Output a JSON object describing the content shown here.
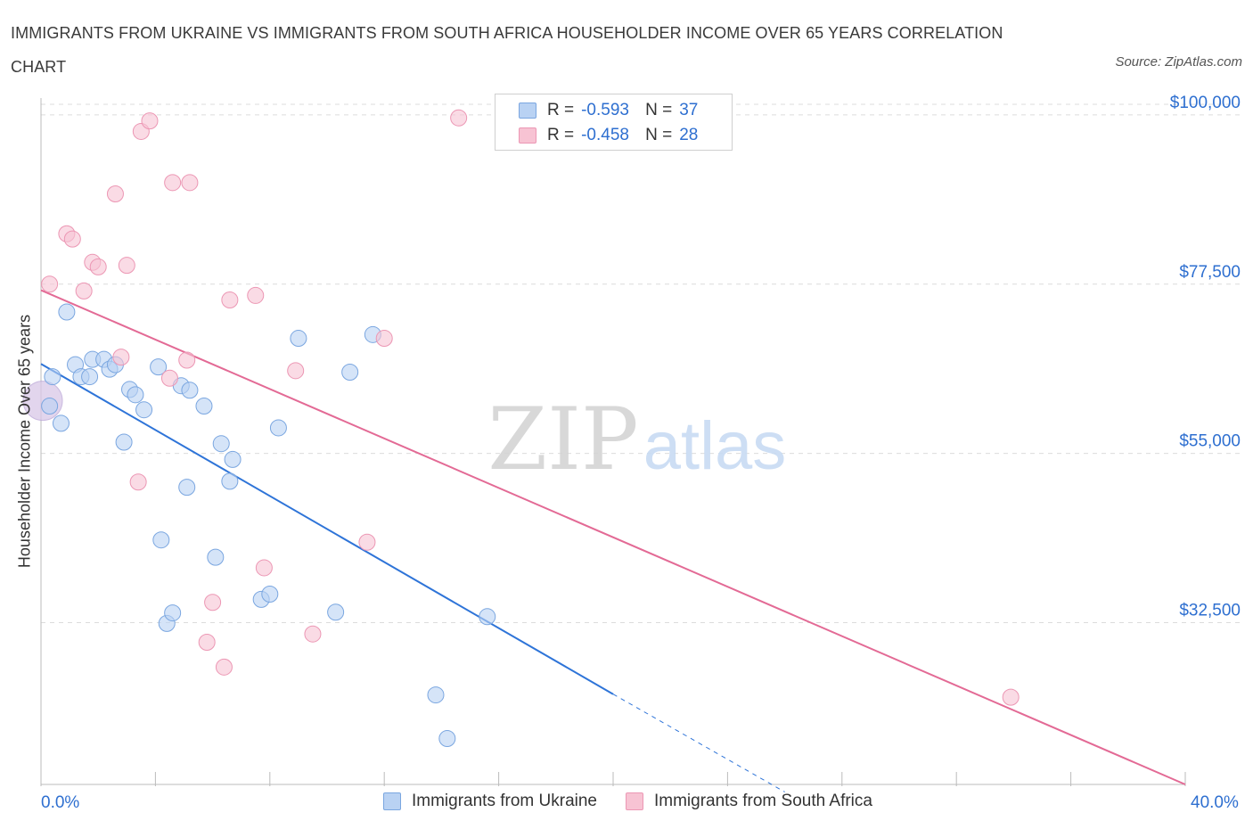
{
  "title": "IMMIGRANTS FROM UKRAINE VS IMMIGRANTS FROM SOUTH AFRICA HOUSEHOLDER INCOME OVER 65 YEARS CORRELATION CHART",
  "source": "Source: ZipAtlas.com",
  "watermark": {
    "zip": "ZIP",
    "atlas": "atlas"
  },
  "legend": {
    "rows": [
      {
        "r_label": "R =",
        "r_value": "-0.593",
        "n_label": "N =",
        "n_value": "37",
        "color": "#a9c8f0"
      },
      {
        "r_label": "R =",
        "r_value": "-0.458",
        "n_label": "N =",
        "n_value": "28",
        "color": "#f5b3c8"
      }
    ]
  },
  "bottom_legend": [
    "Immigrants from Ukraine",
    "Immigrants from South Africa"
  ],
  "colors": {
    "ukraine_fill": "#b9d2f3",
    "ukraine_stroke": "#7aa6e0",
    "ukraine_line": "#2e74d8",
    "sa_fill": "#f7c3d3",
    "sa_stroke": "#ec97b4",
    "sa_line": "#e36a95",
    "tick_text": "#2e6fd0",
    "grid": "#dcdcdc"
  },
  "chart_data": {
    "type": "scatter",
    "title": "IMMIGRANTS FROM UKRAINE VS IMMIGRANTS FROM SOUTH AFRICA HOUSEHOLDER INCOME OVER 65 YEARS CORRELATION CHART",
    "xlabel": "",
    "ylabel": "Householder Income Over 65 years",
    "xlim": [
      0,
      40
    ],
    "ylim": [
      11000,
      102000
    ],
    "x_tick_labels": [
      "0.0%",
      "40.0%"
    ],
    "y_ticks": [
      32500,
      55000,
      77500,
      100000
    ],
    "y_tick_labels": [
      "$32,500",
      "$55,000",
      "$77,500",
      "$100,000"
    ],
    "grid": true,
    "legend_position": "top-center",
    "series": [
      {
        "name": "Immigrants from Ukraine",
        "points": [
          [
            0.3,
            61300
          ],
          [
            0.4,
            65200
          ],
          [
            0.7,
            59000
          ],
          [
            0.9,
            73800
          ],
          [
            1.2,
            66800
          ],
          [
            1.4,
            65200
          ],
          [
            1.7,
            65200
          ],
          [
            1.8,
            67500
          ],
          [
            2.2,
            67500
          ],
          [
            2.4,
            66200
          ],
          [
            2.6,
            66800
          ],
          [
            2.9,
            56500
          ],
          [
            3.1,
            63500
          ],
          [
            3.3,
            62800
          ],
          [
            3.6,
            60800
          ],
          [
            4.1,
            66500
          ],
          [
            4.2,
            43500
          ],
          [
            4.4,
            32400
          ],
          [
            4.6,
            33800
          ],
          [
            4.9,
            64000
          ],
          [
            5.1,
            50500
          ],
          [
            5.2,
            63400
          ],
          [
            5.7,
            61300
          ],
          [
            6.1,
            41200
          ],
          [
            6.3,
            56300
          ],
          [
            6.6,
            51300
          ],
          [
            6.7,
            54200
          ],
          [
            7.7,
            35600
          ],
          [
            8.0,
            36300
          ],
          [
            8.3,
            58400
          ],
          [
            9.0,
            70300
          ],
          [
            10.3,
            33900
          ],
          [
            10.8,
            65800
          ],
          [
            11.6,
            70800
          ],
          [
            13.8,
            22900
          ],
          [
            14.2,
            17100
          ],
          [
            15.6,
            33300
          ]
        ]
      },
      {
        "name": "Immigrants from South Africa",
        "points": [
          [
            0.3,
            77500
          ],
          [
            0.9,
            84200
          ],
          [
            1.1,
            83500
          ],
          [
            1.5,
            76600
          ],
          [
            1.8,
            80400
          ],
          [
            2.0,
            79800
          ],
          [
            2.6,
            89500
          ],
          [
            2.8,
            67800
          ],
          [
            3.0,
            80000
          ],
          [
            3.4,
            51200
          ],
          [
            3.5,
            97800
          ],
          [
            3.8,
            99200
          ],
          [
            4.5,
            65000
          ],
          [
            4.6,
            91000
          ],
          [
            5.1,
            67400
          ],
          [
            5.2,
            91000
          ],
          [
            5.8,
            29900
          ],
          [
            6.0,
            35200
          ],
          [
            6.4,
            26600
          ],
          [
            6.6,
            75400
          ],
          [
            7.5,
            76000
          ],
          [
            7.8,
            39800
          ],
          [
            8.9,
            66000
          ],
          [
            9.5,
            31000
          ],
          [
            11.4,
            43200
          ],
          [
            12.0,
            70300
          ],
          [
            14.6,
            99600
          ],
          [
            33.9,
            22600
          ]
        ]
      }
    ],
    "trend_lines": [
      {
        "series": "Immigrants from Ukraine",
        "x0": 0,
        "y0": 66900,
        "x1": 20,
        "y1": 23000,
        "dashed_to_x": 26,
        "dashed_to_y": 10000
      },
      {
        "series": "Immigrants from South Africa",
        "x0": 0,
        "y0": 76700,
        "x1": 40,
        "y1": 11000
      }
    ]
  }
}
